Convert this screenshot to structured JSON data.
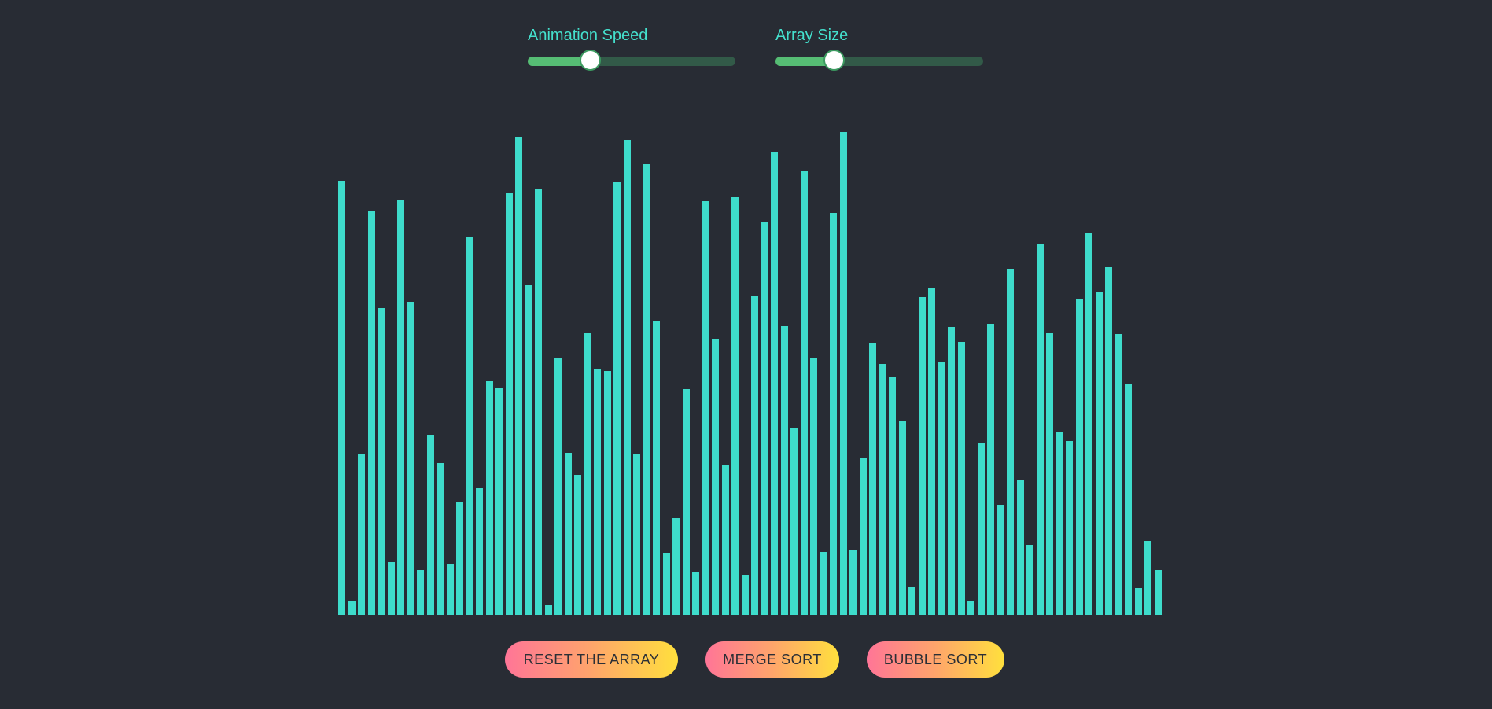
{
  "controls": {
    "speed": {
      "label": "Animation Speed",
      "value": 0.3
    },
    "size": {
      "label": "Array Size",
      "value": 0.28
    }
  },
  "colors": {
    "background": "#282c34",
    "bar": "#3edccb",
    "label": "#44e0cd",
    "slider_track": "#325a48",
    "slider_fill": "#56bd74"
  },
  "array": {
    "max_value": 627,
    "values": [
      558,
      18,
      206,
      520,
      394,
      68,
      534,
      403,
      58,
      232,
      195,
      66,
      145,
      485,
      163,
      300,
      292,
      542,
      615,
      425,
      547,
      12,
      331,
      208,
      180,
      362,
      316,
      314,
      556,
      611,
      206,
      580,
      378,
      79,
      124,
      290,
      55,
      532,
      355,
      192,
      537,
      51,
      410,
      506,
      595,
      371,
      240,
      571,
      331,
      81,
      517,
      621,
      83,
      201,
      350,
      323,
      305,
      250,
      35,
      409,
      420,
      325,
      370,
      351,
      18,
      221,
      374,
      141,
      445,
      173,
      90,
      477,
      362,
      235,
      224,
      407,
      491,
      415,
      447,
      361,
      296,
      34,
      95,
      58
    ],
    "right_edge": 1490,
    "baseline": 782,
    "bar_stride": 12.5,
    "bar_width": 9
  },
  "buttons": {
    "reset": "RESET THE ARRAY",
    "merge": "MERGE SORT",
    "bubble": "BUBBLE SORT"
  }
}
